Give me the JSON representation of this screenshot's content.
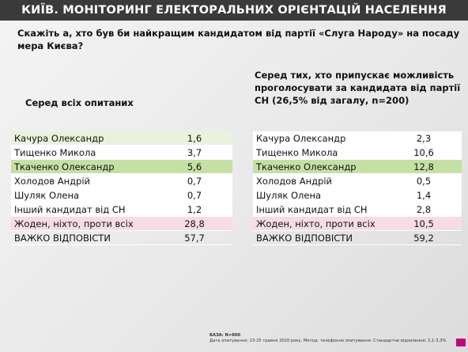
{
  "header": {
    "title": "КИЇВ. МОНІТОРИНГ ЕЛЕКТОРАЛЬНИХ ОРІЄНТАЦІЙ НАСЕЛЕННЯ"
  },
  "question": "Скажіть а, хто був би найкращим  кандидатом від партії «Слуга Народу» на посаду мера Києва?",
  "left": {
    "subtitle": "Серед всіх опитаних",
    "rows": [
      {
        "name": "Качура Олександр",
        "value": "1,6",
        "style": "light-green"
      },
      {
        "name": "Тищенко Микола",
        "value": "3,7",
        "style": "white"
      },
      {
        "name": "Ткаченко Олександр",
        "value": "5,6",
        "style": "green"
      },
      {
        "name": "Холодов Андрій",
        "value": "0,7",
        "style": "white"
      },
      {
        "name": "Шуляк Олена",
        "value": "0,7",
        "style": "white"
      },
      {
        "name": "Інший кандидат від СН",
        "value": "1,2",
        "style": "white"
      },
      {
        "name": "Жоден, ніхто, проти всіх",
        "value": "28,8",
        "style": "pink"
      },
      {
        "name": "ВАЖКО ВІДПОВІСТИ",
        "value": "57,7",
        "style": "plain"
      }
    ]
  },
  "right": {
    "subtitle": "Серед тих, хто припускає можливість проголосувати за кандидата від партії СН (26,5% від загалу, n=200)",
    "rows": [
      {
        "name": "Качура Олександр",
        "value": "2,3",
        "style": "white"
      },
      {
        "name": "Тищенко Микола",
        "value": "10,6",
        "style": "white"
      },
      {
        "name": "Ткаченко Олександр",
        "value": "12,8",
        "style": "green"
      },
      {
        "name": "Холодов Андрій",
        "value": "0,5",
        "style": "white"
      },
      {
        "name": "Шуляк Олена",
        "value": "1,4",
        "style": "white"
      },
      {
        "name": "Інший кандидат від СН",
        "value": "2,8",
        "style": "white"
      },
      {
        "name": "Жоден, ніхто, проти всіх",
        "value": "10,5",
        "style": "pink"
      },
      {
        "name": "ВАЖКО ВІДПОВІСТИ",
        "value": "59,2",
        "style": "plain"
      }
    ]
  },
  "footer": {
    "base": "БАЗА: N=800",
    "note": "Дата опитування: 23-25 травня 2020 року. Метод: телефонне опитування. Стандартне відхилення: 2,1-3,3%"
  },
  "colors": {
    "header_bg": "#3a3a3a",
    "row_green": "#c5e0a5",
    "row_light_green": "#eaf2dd",
    "row_pink": "#f7dce6",
    "page_badge": "#c4007a"
  }
}
